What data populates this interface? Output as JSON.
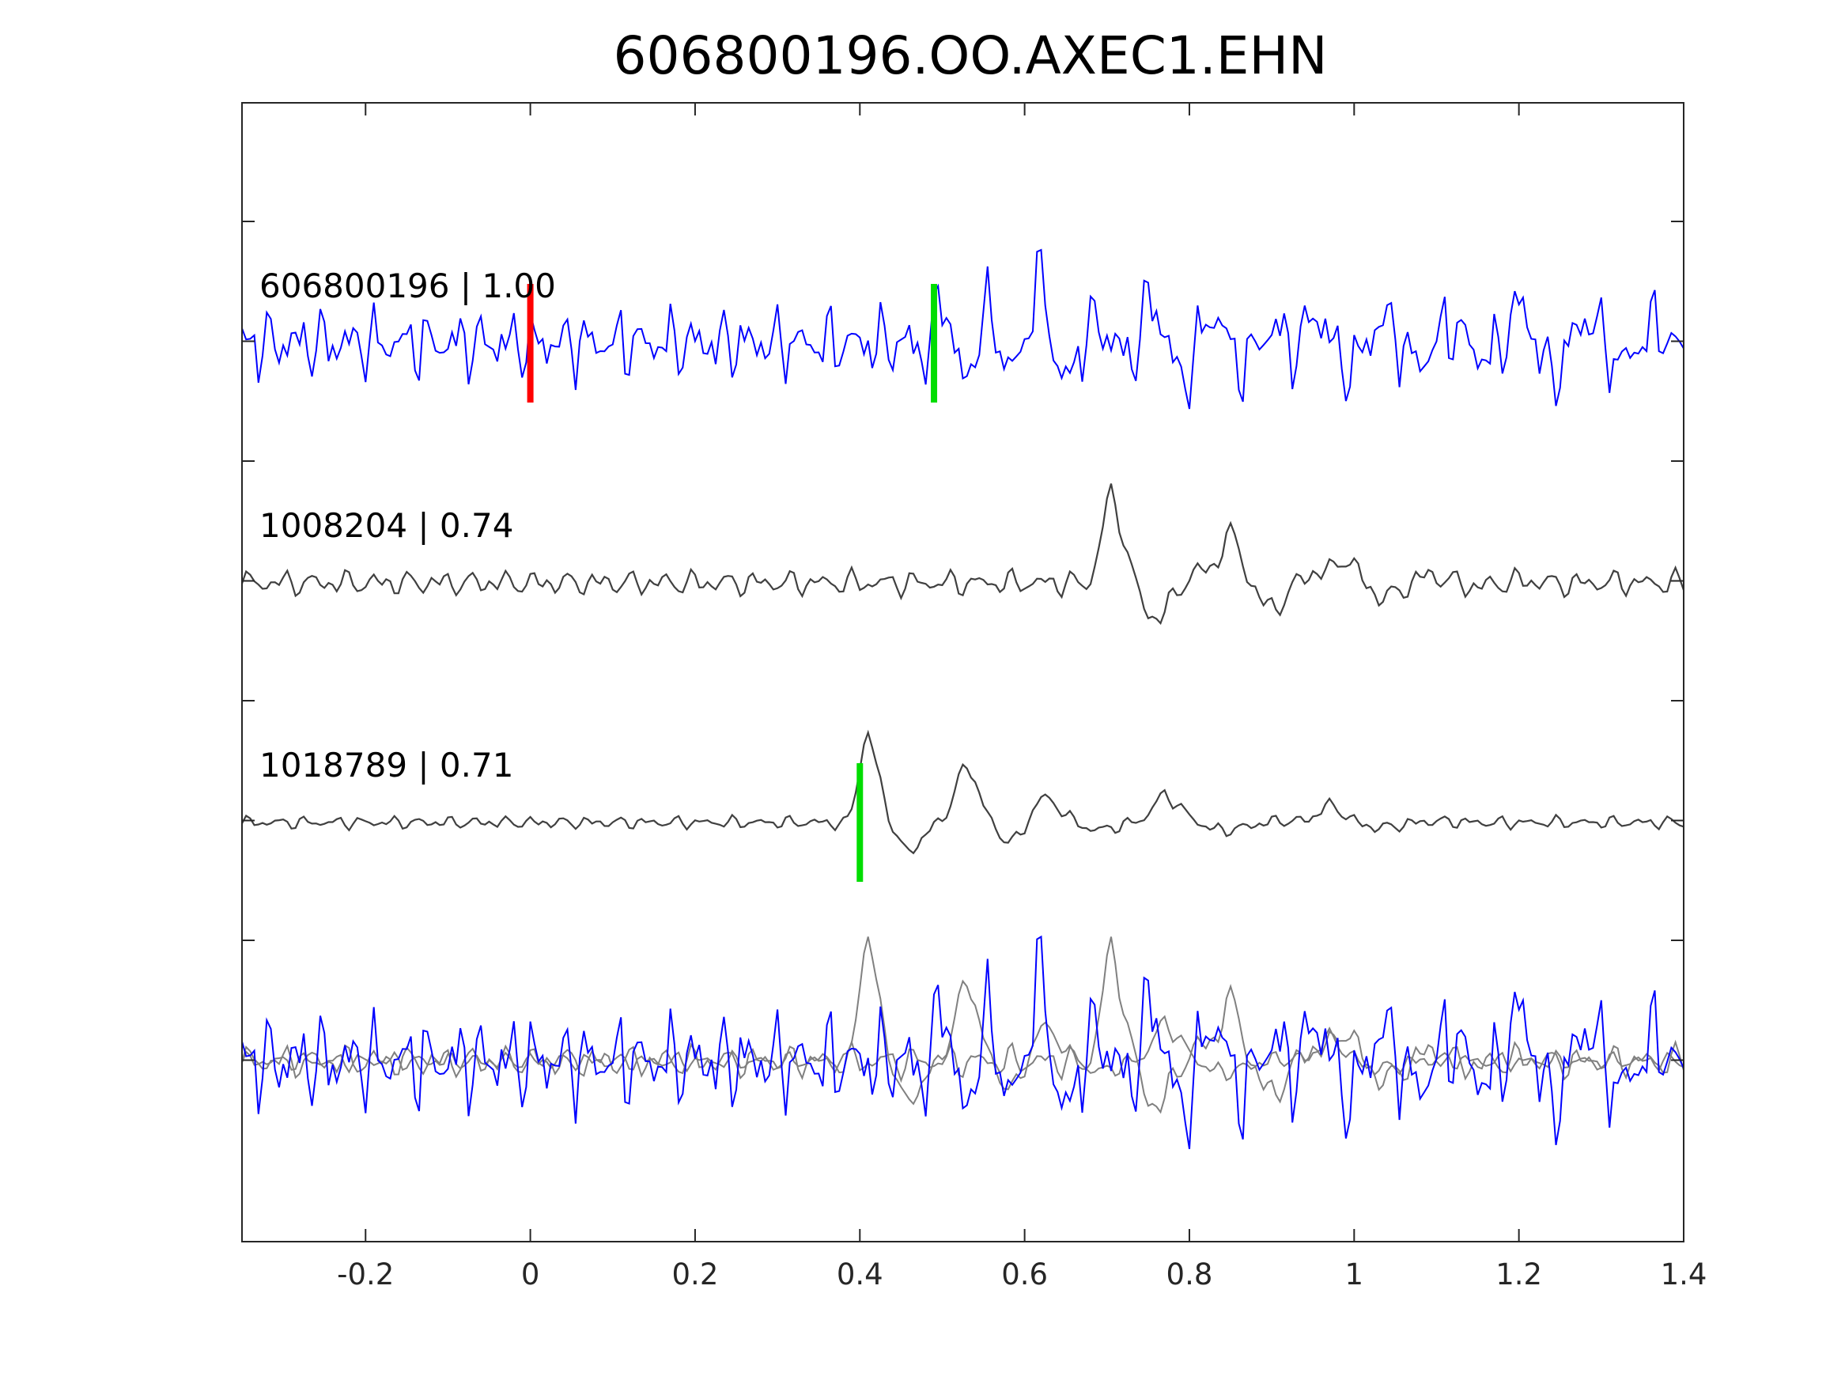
{
  "chart_data": {
    "type": "line",
    "title": "606800196.OO.AXEC1.EHN",
    "xlabel": "",
    "ylabel": "",
    "xlim": [
      -0.35,
      1.4
    ],
    "x_ticks": [
      -0.2,
      0,
      0.2,
      0.4,
      0.6,
      0.8,
      1,
      1.2,
      1.4
    ],
    "x_tick_labels": [
      "-0.2",
      "0",
      "0.2",
      "0.4",
      "0.6",
      "0.8",
      "1",
      "1.2",
      "1.4"
    ],
    "y_ticks": 8,
    "grid": false,
    "sample_interval": 0.005,
    "traces": [
      {
        "id": "606800196",
        "correlation": "1.00",
        "label": "606800196 | 1.00",
        "color": "#0000ff",
        "picks": [
          {
            "x": 0.0,
            "color": "#ff0000"
          },
          {
            "x": 0.49,
            "color": "#00dd00"
          }
        ],
        "waveform": {
          "noise": [
            {
              "amp": 0.2,
              "freq": 31,
              "phase": 0.3
            },
            {
              "amp": 0.16,
              "freq": 47,
              "phase": 1.1
            },
            {
              "amp": 0.12,
              "freq": 63,
              "phase": 2.3
            },
            {
              "amp": 0.08,
              "freq": 83,
              "phase": 0.7
            }
          ],
          "events": [
            {
              "t": 0.5,
              "amp": 0.55,
              "freq": 18,
              "decay": 0.12
            },
            {
              "t": 0.62,
              "amp": 0.6,
              "freq": 14,
              "decay": 0.1
            },
            {
              "t": 0.75,
              "amp": 0.45,
              "freq": 13,
              "decay": 0.12
            },
            {
              "t": 0.95,
              "amp": 0.4,
              "freq": 12,
              "decay": 0.2
            },
            {
              "t": 1.2,
              "amp": 0.3,
              "freq": 12,
              "decay": 0.2
            }
          ]
        }
      },
      {
        "id": "1008204",
        "correlation": "0.74",
        "label": "1008204 | 0.74",
        "color": "#404040",
        "picks": [],
        "waveform": {
          "noise": [
            {
              "amp": 0.08,
              "freq": 26,
              "phase": 0.5
            },
            {
              "amp": 0.06,
              "freq": 41,
              "phase": 1.9
            },
            {
              "amp": 0.04,
              "freq": 57,
              "phase": 0.2
            }
          ],
          "events": [
            {
              "t": 0.705,
              "amp": 1.0,
              "freq": 8.5,
              "decay": 0.06
            },
            {
              "t": 0.85,
              "amp": 0.55,
              "freq": 9,
              "decay": 0.07
            },
            {
              "t": 0.99,
              "amp": 0.3,
              "freq": 9,
              "decay": 0.08
            }
          ]
        }
      },
      {
        "id": "1018789",
        "correlation": "0.71",
        "label": "1018789 | 0.71",
        "color": "#404040",
        "picks": [
          {
            "x": 0.4,
            "color": "#00dd00"
          }
        ],
        "waveform": {
          "noise": [
            {
              "amp": 0.04,
              "freq": 29,
              "phase": 0.9
            },
            {
              "amp": 0.03,
              "freq": 44,
              "phase": 2.7
            },
            {
              "amp": 0.02,
              "freq": 61,
              "phase": 1.4
            }
          ],
          "events": [
            {
              "t": 0.41,
              "amp": 1.0,
              "freq": 9,
              "decay": 0.045
            },
            {
              "t": 0.53,
              "amp": 0.6,
              "freq": 8,
              "decay": 0.05
            },
            {
              "t": 0.62,
              "amp": 0.3,
              "freq": 7,
              "decay": 0.05
            },
            {
              "t": 0.77,
              "amp": 0.3,
              "freq": 6,
              "decay": 0.06
            },
            {
              "t": 0.97,
              "amp": 0.2,
              "freq": 7,
              "decay": 0.05
            }
          ]
        }
      }
    ],
    "overlay": {
      "colors": [
        "#0000ff",
        "#808080",
        "#808080"
      ]
    }
  }
}
